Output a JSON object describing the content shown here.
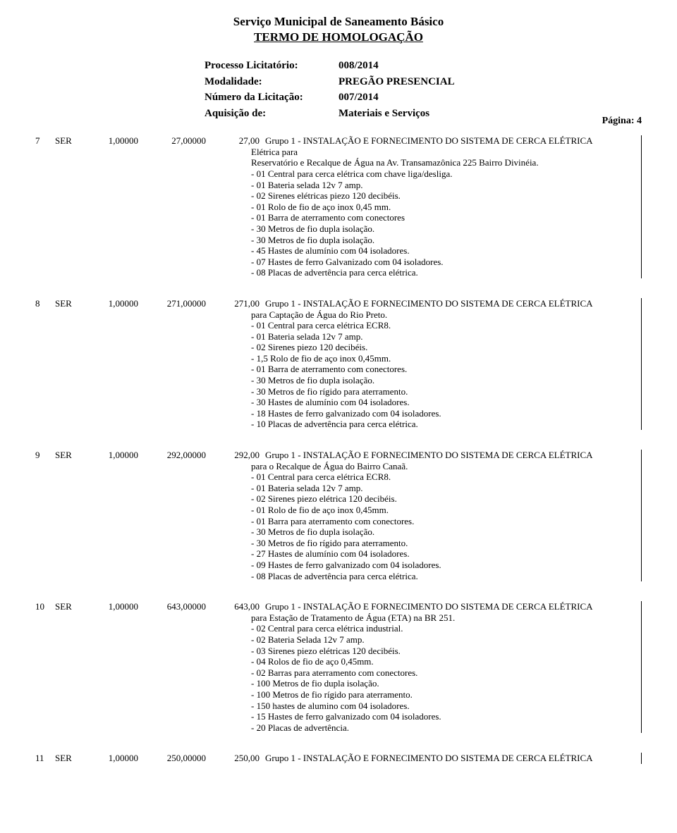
{
  "doc": {
    "title": "Serviço Municipal de Saneamento Básico",
    "subtitle": "TERMO DE   HOMOLOGAÇÃO"
  },
  "header": {
    "rows": [
      {
        "label": "Processo Licitatório:",
        "value": "008/2014"
      },
      {
        "label": "Modalidade:",
        "value": "PREGÃO PRESENCIAL"
      },
      {
        "label": "Número da Licitação:",
        "value": "007/2014"
      },
      {
        "label": "Aquisição de:",
        "value": "Materiais e Serviços"
      }
    ],
    "page_label": "Página: 4"
  },
  "items": [
    {
      "num": "7",
      "un": "SER",
      "qty": "1,00000",
      "unit_price": "27,00000",
      "total": "27,00",
      "desc_first": "Grupo 1 - INSTALAÇÃO E FORNECIMENTO DO SISTEMA DE CERCA ELÉTRICA",
      "desc_rest": [
        "Elétrica para",
        "Reservatório e Recalque de Água na Av. Transamazônica 225 Bairro Divinéia.",
        "- 01 Central para cerca elétrica com chave liga/desliga.",
        "- 01 Bateria selada 12v 7 amp.",
        "- 02 Sirenes elétricas piezo 120 decibéis.",
        "- 01 Rolo de fio de aço inox 0,45 mm.",
        "- 01 Barra de aterramento com conectores",
        "- 30 Metros de fio dupla isolação.",
        "- 30 Metros de fio dupla isolação.",
        "- 45 Hastes de alumínio com 04 isoladores.",
        "- 07 Hastes de ferro Galvanizado com 04 isoladores.",
        "- 08 Placas de advertência para cerca elétrica."
      ]
    },
    {
      "num": "8",
      "un": "SER",
      "qty": "1,00000",
      "unit_price": "271,00000",
      "total": "271,00",
      "desc_first": "Grupo 1 - INSTALAÇÃO E FORNECIMENTO DO SISTEMA DE CERCA ELÉTRICA",
      "desc_rest": [
        "para Captação de Água do Rio Preto.",
        "- 01 Central para cerca elétrica ECR8.",
        "- 01 Bateria selada 12v 7 amp.",
        "- 02 Sirenes piezo 120 decibéis.",
        "- 1,5 Rolo de fio de aço inox 0,45mm.",
        "- 01 Barra de aterramento com conectores.",
        "- 30 Metros de fio dupla isolação.",
        "- 30 Metros de fio rígido para aterramento.",
        "- 30 Hastes de alumínio com 04 isoladores.",
        "- 18 Hastes de ferro galvanizado com 04 isoladores.",
        "- 10 Placas de advertência para cerca elétrica."
      ]
    },
    {
      "num": "9",
      "un": "SER",
      "qty": "1,00000",
      "unit_price": "292,00000",
      "total": "292,00",
      "desc_first": "Grupo 1 - INSTALAÇÃO E FORNECIMENTO DO SISTEMA DE CERCA ELÉTRICA",
      "desc_rest": [
        "para o Recalque de Água do Bairro Canaã.",
        "- 01 Central para cerca elétrica ECR8.",
        "- 01 Bateria selada 12v 7 amp.",
        "- 02 Sirenes piezo elétrica 120 decibéis.",
        "- 01 Rolo de fio de aço inox 0,45mm.",
        "- 01 Barra para aterramento com conectores.",
        "- 30 Metros de fio dupla isolação.",
        "- 30 Metros de fio rígido para aterramento.",
        "- 27 Hastes de alumínio com 04 isoladores.",
        "- 09 Hastes de ferro galvanizado com 04 isoladores.",
        "- 08 Placas de advertência para cerca elétrica."
      ]
    },
    {
      "num": "10",
      "un": "SER",
      "qty": "1,00000",
      "unit_price": "643,00000",
      "total": "643,00",
      "desc_first": "Grupo 1 - INSTALAÇÃO E FORNECIMENTO DO SISTEMA DE CERCA ELÉTRICA",
      "desc_rest": [
        "para Estação de Tratamento de Água (ETA) na BR 251.",
        "- 02 Central para cerca elétrica industrial.",
        "- 02 Bateria Selada 12v 7 amp.",
        "- 03 Sirenes piezo elétricas 120 decibéis.",
        "- 04 Rolos de fio de aço 0,45mm.",
        "- 02 Barras para aterramento com conectores.",
        "- 100 Metros de fio dupla isolação.",
        "- 100 Metros de fio rígido para aterramento.",
        "- 150 hastes de alumino com 04 isoladores.",
        "- 15 Hastes de ferro galvanizado com 04 isoladores.",
        "- 20 Placas de advertência."
      ]
    },
    {
      "num": "11",
      "un": "SER",
      "qty": "1,00000",
      "unit_price": "250,00000",
      "total": "250,00",
      "desc_first": "Grupo 1 - INSTALAÇÃO E FORNECIMENTO DO SISTEMA DE CERCA ELÉTRICA",
      "desc_rest": []
    }
  ]
}
